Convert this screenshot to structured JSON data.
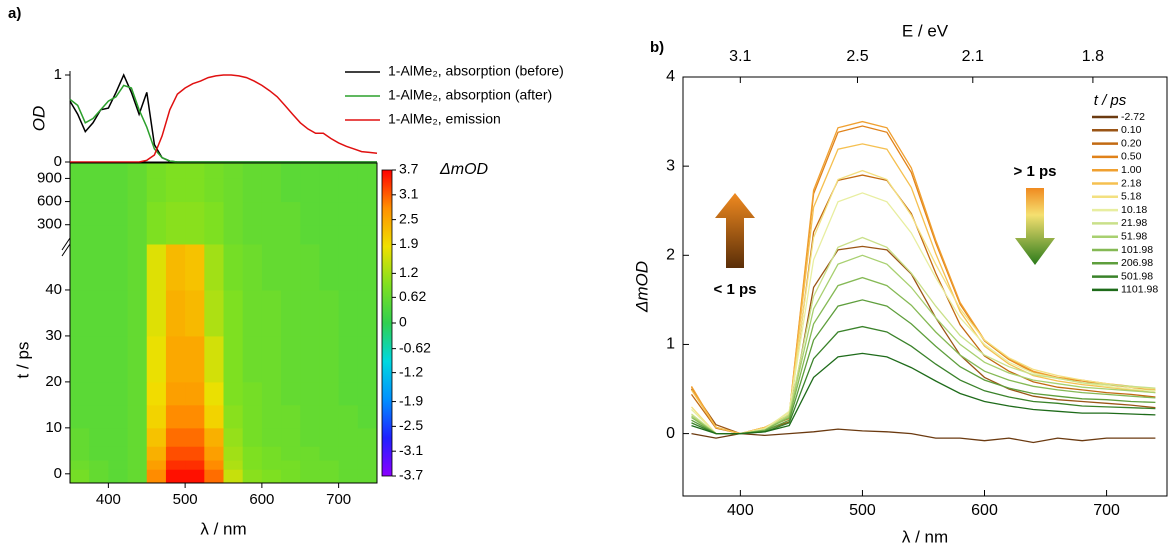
{
  "chart_data": [
    {
      "type": "line",
      "panel_label": "a)",
      "ylabel": "OD",
      "xlim": [
        350,
        750
      ],
      "ylim": [
        0,
        1
      ],
      "yticks": [
        0,
        1
      ],
      "x": [
        350,
        360,
        370,
        380,
        390,
        400,
        410,
        420,
        430,
        440,
        450,
        460,
        470,
        480,
        490,
        500,
        510,
        520,
        530,
        540,
        550,
        560,
        570,
        580,
        590,
        600,
        610,
        620,
        630,
        640,
        650,
        660,
        670,
        680,
        690,
        700,
        710,
        720,
        730,
        740,
        750
      ],
      "series": [
        {
          "name": "1-AlMe₂, absorption (before)",
          "color": "#000000",
          "values": [
            0.7,
            0.55,
            0.35,
            0.45,
            0.6,
            0.62,
            0.8,
            1.0,
            0.8,
            0.55,
            0.8,
            0.2,
            0.05,
            0.01,
            0,
            0,
            0,
            0,
            0,
            0,
            0,
            0,
            0,
            0,
            0,
            0,
            0,
            0,
            0,
            0,
            0,
            0,
            0,
            0,
            0,
            0,
            0,
            0,
            0,
            0,
            0
          ]
        },
        {
          "name": "1-AlMe₂, absorption (after)",
          "color": "#2ca02c",
          "values": [
            0.72,
            0.65,
            0.45,
            0.5,
            0.6,
            0.7,
            0.75,
            0.88,
            0.85,
            0.6,
            0.4,
            0.15,
            0.05,
            0.01,
            0,
            0,
            0,
            0,
            0,
            0,
            0,
            0,
            0,
            0,
            0,
            0,
            0,
            0,
            0,
            0,
            0,
            0,
            0,
            0,
            0,
            0,
            0,
            0,
            0,
            0,
            0
          ]
        },
        {
          "name": "1-AlMe₂, emission",
          "color": "#e01010",
          "values": [
            0,
            0,
            0,
            0,
            0,
            0,
            0,
            0,
            0,
            0,
            0.02,
            0.08,
            0.3,
            0.6,
            0.78,
            0.85,
            0.9,
            0.93,
            0.97,
            0.99,
            1.0,
            1.0,
            0.99,
            0.97,
            0.93,
            0.88,
            0.82,
            0.75,
            0.65,
            0.55,
            0.45,
            0.38,
            0.33,
            0.33,
            0.27,
            0.22,
            0.18,
            0.15,
            0.12,
            0.11,
            0.1
          ]
        }
      ]
    },
    {
      "type": "heatmap",
      "xlabel": "λ / nm",
      "ylabel": "t / ps",
      "colorbar_label": "ΔmOD",
      "xlim": [
        350,
        750
      ],
      "xticks": [
        400,
        500,
        600,
        700
      ],
      "ylim": [
        -2,
        50
      ],
      "ylim_upper": [
        50,
        1100
      ],
      "yticks": [
        0,
        10,
        20,
        30,
        40
      ],
      "yticks_upper": [
        300,
        600,
        900
      ],
      "zlim": [
        -3.7,
        3.7
      ],
      "colorbar_ticks": [
        3.7,
        3.1,
        2.5,
        1.9,
        1.2,
        0.62,
        0,
        -0.62,
        -1.2,
        -1.9,
        -2.5,
        -3.1,
        -3.7
      ],
      "colormap": [
        "#8b00ff",
        "#2020ff",
        "#0090ff",
        "#00d8e0",
        "#30d050",
        "#80e020",
        "#f0e000",
        "#ff9000",
        "#ff0000"
      ],
      "x_edges": [
        350,
        375,
        400,
        425,
        450,
        475,
        500,
        525,
        550,
        575,
        600,
        625,
        650,
        675,
        700,
        725,
        750
      ],
      "y_edges": [
        -2,
        1,
        3,
        6,
        10,
        15,
        20,
        30,
        40,
        50,
        300,
        600,
        900,
        1100
      ],
      "z": [
        [
          0.8,
          0.6,
          0.5,
          0.6,
          2.8,
          3.6,
          3.6,
          3.0,
          1.5,
          1.0,
          0.9,
          0.8,
          0.7,
          0.7,
          0.6,
          0.6
        ],
        [
          0.7,
          0.6,
          0.5,
          0.6,
          2.6,
          3.4,
          3.4,
          2.8,
          1.3,
          0.9,
          0.8,
          0.8,
          0.7,
          0.7,
          0.6,
          0.6
        ],
        [
          0.6,
          0.5,
          0.5,
          0.6,
          2.4,
          3.2,
          3.2,
          2.6,
          1.2,
          0.9,
          0.8,
          0.7,
          0.7,
          0.6,
          0.6,
          0.6
        ],
        [
          0.6,
          0.5,
          0.5,
          0.6,
          2.2,
          3.0,
          3.0,
          2.4,
          1.1,
          0.8,
          0.7,
          0.7,
          0.6,
          0.6,
          0.6,
          0.6
        ],
        [
          0.5,
          0.5,
          0.5,
          0.6,
          2.0,
          2.8,
          2.8,
          2.0,
          1.0,
          0.8,
          0.7,
          0.7,
          0.6,
          0.6,
          0.6,
          0.5
        ],
        [
          0.5,
          0.5,
          0.5,
          0.6,
          1.9,
          2.6,
          2.6,
          1.8,
          0.9,
          0.8,
          0.7,
          0.6,
          0.6,
          0.6,
          0.5,
          0.5
        ],
        [
          0.5,
          0.5,
          0.5,
          0.6,
          1.8,
          2.5,
          2.5,
          1.6,
          0.9,
          0.7,
          0.7,
          0.6,
          0.6,
          0.6,
          0.5,
          0.5
        ],
        [
          0.5,
          0.5,
          0.5,
          0.6,
          1.7,
          2.4,
          2.3,
          1.3,
          0.9,
          0.7,
          0.7,
          0.6,
          0.6,
          0.6,
          0.5,
          0.5
        ],
        [
          0.5,
          0.5,
          0.5,
          0.6,
          1.7,
          2.3,
          2.2,
          1.2,
          0.8,
          0.7,
          0.6,
          0.6,
          0.6,
          0.5,
          0.5,
          0.5
        ],
        [
          0.5,
          0.5,
          0.5,
          0.6,
          0.9,
          1.0,
          1.0,
          0.9,
          0.7,
          0.6,
          0.6,
          0.6,
          0.5,
          0.5,
          0.5,
          0.5
        ],
        [
          0.5,
          0.5,
          0.5,
          0.6,
          0.9,
          1.0,
          1.0,
          0.9,
          0.7,
          0.6,
          0.6,
          0.6,
          0.5,
          0.5,
          0.5,
          0.5
        ],
        [
          0.5,
          0.5,
          0.5,
          0.6,
          0.8,
          0.9,
          0.9,
          0.8,
          0.7,
          0.6,
          0.6,
          0.5,
          0.5,
          0.5,
          0.5,
          0.5
        ],
        [
          0.5,
          0.5,
          0.5,
          0.6,
          0.8,
          0.9,
          0.9,
          0.8,
          0.7,
          0.6,
          0.6,
          0.5,
          0.5,
          0.5,
          0.5,
          0.5
        ]
      ]
    },
    {
      "type": "line",
      "panel_label": "b)",
      "xlabel": "λ / nm",
      "ylabel": "ΔmOD",
      "x2label": "E / eV",
      "legend_title": "t / ps",
      "xlim": [
        353,
        749.5
      ],
      "xticks": [
        400,
        500,
        600,
        700
      ],
      "ylim": [
        -0.7,
        4
      ],
      "yticks": [
        0,
        1,
        2,
        3,
        4
      ],
      "x2ticks": [
        3.1,
        2.5,
        2.1,
        1.8
      ],
      "annotations": [
        "< 1 ps",
        "> 1 ps"
      ],
      "x": [
        360,
        380,
        400,
        420,
        440,
        460,
        480,
        500,
        520,
        540,
        560,
        580,
        600,
        620,
        640,
        660,
        680,
        700,
        720,
        740
      ],
      "series": [
        {
          "name": "-2.72",
          "color": "#6b3a10",
          "values": [
            0.0,
            -0.05,
            0.0,
            -0.02,
            0.0,
            0.02,
            0.05,
            0.03,
            0.02,
            0.0,
            -0.05,
            -0.05,
            -0.08,
            -0.05,
            -0.1,
            -0.05,
            -0.08,
            -0.05,
            -0.05,
            -0.05
          ]
        },
        {
          "name": "0.10",
          "color": "#9a5516",
          "values": [
            0.5,
            0.1,
            0.0,
            0.04,
            0.13,
            1.64,
            2.06,
            2.1,
            2.06,
            1.79,
            1.3,
            0.88,
            0.63,
            0.5,
            0.42,
            0.38,
            0.36,
            0.34,
            0.32,
            0.29
          ]
        },
        {
          "name": "0.20",
          "color": "#c26a12",
          "values": [
            0.44,
            0.06,
            0,
            0.06,
            0.17,
            2.26,
            2.84,
            2.9,
            2.84,
            2.47,
            1.8,
            1.22,
            0.87,
            0.7,
            0.58,
            0.52,
            0.49,
            0.46,
            0.44,
            0.41
          ]
        },
        {
          "name": "0.50",
          "color": "#e0821a",
          "values": [
            0.52,
            0.07,
            0,
            0.07,
            0.21,
            2.69,
            3.38,
            3.45,
            3.38,
            2.93,
            2.14,
            1.45,
            1.04,
            0.83,
            0.69,
            0.62,
            0.59,
            0.55,
            0.52,
            0.48
          ]
        },
        {
          "name": "1.00",
          "color": "#f0a030",
          "values": [
            0.53,
            0.07,
            0,
            0.07,
            0.21,
            2.73,
            3.43,
            3.5,
            3.43,
            2.98,
            2.17,
            1.47,
            1.05,
            0.84,
            0.7,
            0.63,
            0.6,
            0.56,
            0.53,
            0.49
          ]
        },
        {
          "name": "2.18",
          "color": "#f5c050",
          "values": [
            0.49,
            0.07,
            0,
            0.07,
            0.2,
            2.54,
            3.19,
            3.25,
            3.19,
            2.76,
            2.02,
            1.37,
            0.98,
            0.78,
            0.65,
            0.59,
            0.55,
            0.52,
            0.49,
            0.46
          ]
        },
        {
          "name": "5.18",
          "color": "#f3e080",
          "values": [
            0.3,
            0.0,
            0,
            0.06,
            0.24,
            2.2,
            2.85,
            2.95,
            2.85,
            2.45,
            1.9,
            1.4,
            1.05,
            0.85,
            0.72,
            0.65,
            0.6,
            0.56,
            0.52,
            0.5
          ]
        },
        {
          "name": "10.18",
          "color": "#e8eea0",
          "values": [
            0.27,
            0,
            0,
            0.05,
            0.25,
            1.95,
            2.6,
            2.7,
            2.6,
            2.25,
            1.75,
            1.3,
            1.0,
            0.8,
            0.68,
            0.62,
            0.57,
            0.53,
            0.5,
            0.48
          ]
        },
        {
          "name": "21.98",
          "color": "#c9e08a",
          "values": [
            0.22,
            0,
            0,
            0.04,
            0.22,
            1.54,
            2.09,
            2.2,
            2.09,
            1.8,
            1.43,
            1.1,
            0.88,
            0.75,
            0.66,
            0.62,
            0.57,
            0.55,
            0.53,
            0.51
          ]
        },
        {
          "name": "51.98",
          "color": "#a8d070",
          "values": [
            0.2,
            0,
            0,
            0.04,
            0.2,
            1.4,
            1.9,
            2.0,
            1.9,
            1.64,
            1.3,
            1.0,
            0.8,
            0.68,
            0.6,
            0.56,
            0.52,
            0.5,
            0.48,
            0.46
          ]
        },
        {
          "name": "101.98",
          "color": "#85b955",
          "values": [
            0.18,
            0,
            0,
            0.04,
            0.18,
            1.23,
            1.66,
            1.75,
            1.66,
            1.44,
            1.14,
            0.88,
            0.7,
            0.6,
            0.53,
            0.49,
            0.46,
            0.44,
            0.42,
            0.4
          ]
        },
        {
          "name": "206.98",
          "color": "#5e9e3c",
          "values": [
            0.15,
            0,
            0,
            0.03,
            0.15,
            1.05,
            1.43,
            1.5,
            1.43,
            1.23,
            0.98,
            0.75,
            0.6,
            0.51,
            0.45,
            0.42,
            0.39,
            0.38,
            0.36,
            0.35
          ]
        },
        {
          "name": "501.98",
          "color": "#3a822a",
          "values": [
            0.12,
            0,
            0,
            0.02,
            0.12,
            0.84,
            1.14,
            1.2,
            1.14,
            0.98,
            0.78,
            0.6,
            0.48,
            0.41,
            0.36,
            0.34,
            0.31,
            0.3,
            0.29,
            0.28
          ]
        },
        {
          "name": "1101.98",
          "color": "#1e6b1a",
          "values": [
            0.09,
            0,
            0,
            0.02,
            0.09,
            0.63,
            0.86,
            0.9,
            0.86,
            0.74,
            0.59,
            0.45,
            0.36,
            0.31,
            0.27,
            0.25,
            0.23,
            0.23,
            0.22,
            0.21
          ]
        }
      ]
    }
  ]
}
